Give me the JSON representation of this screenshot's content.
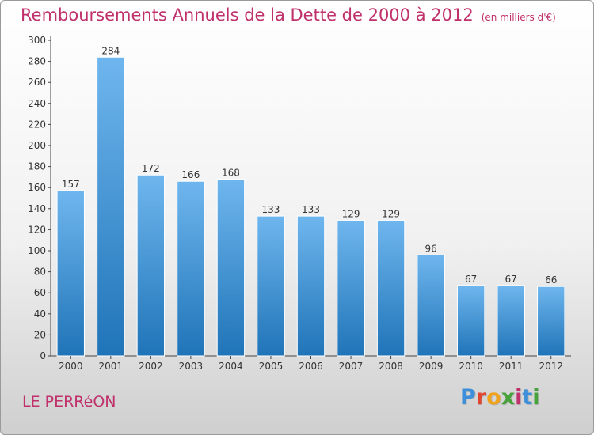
{
  "header": {
    "title": "Remboursements Annuels de la Dette de 2000 à 2012",
    "unit": "(en milliers d'€)"
  },
  "footer": {
    "commune": "LE PERRéON",
    "logo_letters": [
      "P",
      "r",
      "o",
      "x",
      "i",
      "t",
      "i"
    ],
    "logo_colors": [
      "#3c8fd8",
      "#e0462f",
      "#f1a21b",
      "#48a23c",
      "#c0306a",
      "#3c8fd8",
      "#48a23c"
    ]
  },
  "colors": {
    "title": "#c0306a",
    "bar_light": "#6fb6ee",
    "bar_dark": "#1f74b8",
    "axis": "#444444"
  },
  "chart_data": {
    "type": "bar",
    "categories": [
      "2000",
      "2001",
      "2002",
      "2003",
      "2004",
      "2005",
      "2006",
      "2007",
      "2008",
      "2009",
      "2010",
      "2011",
      "2012"
    ],
    "values": [
      157,
      284,
      172,
      166,
      168,
      133,
      133,
      129,
      129,
      96,
      67,
      67,
      66
    ],
    "ylim": [
      0,
      300
    ],
    "yticks": [
      0,
      20,
      40,
      60,
      80,
      100,
      120,
      140,
      160,
      180,
      200,
      220,
      240,
      260,
      280,
      300
    ],
    "grid": false
  }
}
